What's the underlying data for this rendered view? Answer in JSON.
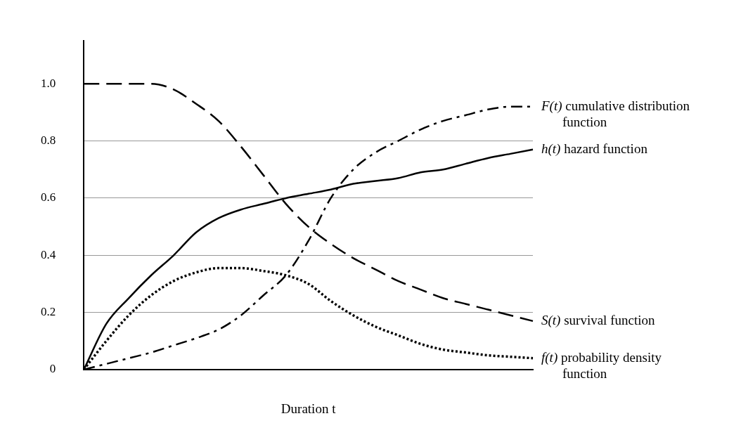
{
  "chart_data": {
    "type": "line",
    "xlabel": "Duration t",
    "categories": [
      null,
      null,
      null,
      null,
      null,
      null,
      null,
      null,
      null,
      null,
      null,
      null,
      null,
      null,
      null,
      null,
      null,
      null,
      null,
      null,
      null
    ],
    "ylim": [
      0,
      1.15
    ],
    "yticks": [
      0,
      0.2,
      0.4,
      0.6,
      0.8,
      {
        "value": 1,
        "label": "1.0"
      }
    ],
    "grid": "y",
    "legend": false,
    "marker": "none",
    "series": [
      {
        "name": "F(t) cumulative distribution function",
        "color": "#000000",
        "line_style": "dashdot",
        "values": [
          0,
          0.02,
          0.04,
          0.06,
          0.085,
          0.11,
          0.14,
          0.19,
          0.26,
          0.33,
          0.45,
          0.6,
          0.7,
          0.76,
          0.8,
          0.84,
          0.87,
          0.89,
          0.91,
          0.92,
          0.92
        ]
      },
      {
        "name": "h(t) hazard function",
        "color": "#000000",
        "line_style": "solid",
        "values": [
          0,
          0.16,
          0.25,
          0.33,
          0.4,
          0.48,
          0.53,
          0.56,
          0.58,
          0.6,
          0.615,
          0.63,
          0.65,
          0.66,
          0.67,
          0.69,
          0.7,
          0.72,
          0.74,
          0.755,
          0.77
        ]
      },
      {
        "name": "S(t) survival function",
        "color": "#000000",
        "line_style": "dashed",
        "values": [
          1,
          1,
          1,
          1,
          0.98,
          0.93,
          0.87,
          0.78,
          0.68,
          0.58,
          0.5,
          0.44,
          0.39,
          0.35,
          0.31,
          0.28,
          0.25,
          0.23,
          0.21,
          0.19,
          0.17
        ]
      },
      {
        "name": "f(t) probability density function",
        "color": "#000000",
        "line_style": "dotted",
        "values": [
          0,
          0.1,
          0.19,
          0.26,
          0.31,
          0.34,
          0.355,
          0.355,
          0.345,
          0.33,
          0.3,
          0.24,
          0.19,
          0.15,
          0.12,
          0.09,
          0.07,
          0.06,
          0.05,
          0.045,
          0.04
        ]
      }
    ]
  }
}
